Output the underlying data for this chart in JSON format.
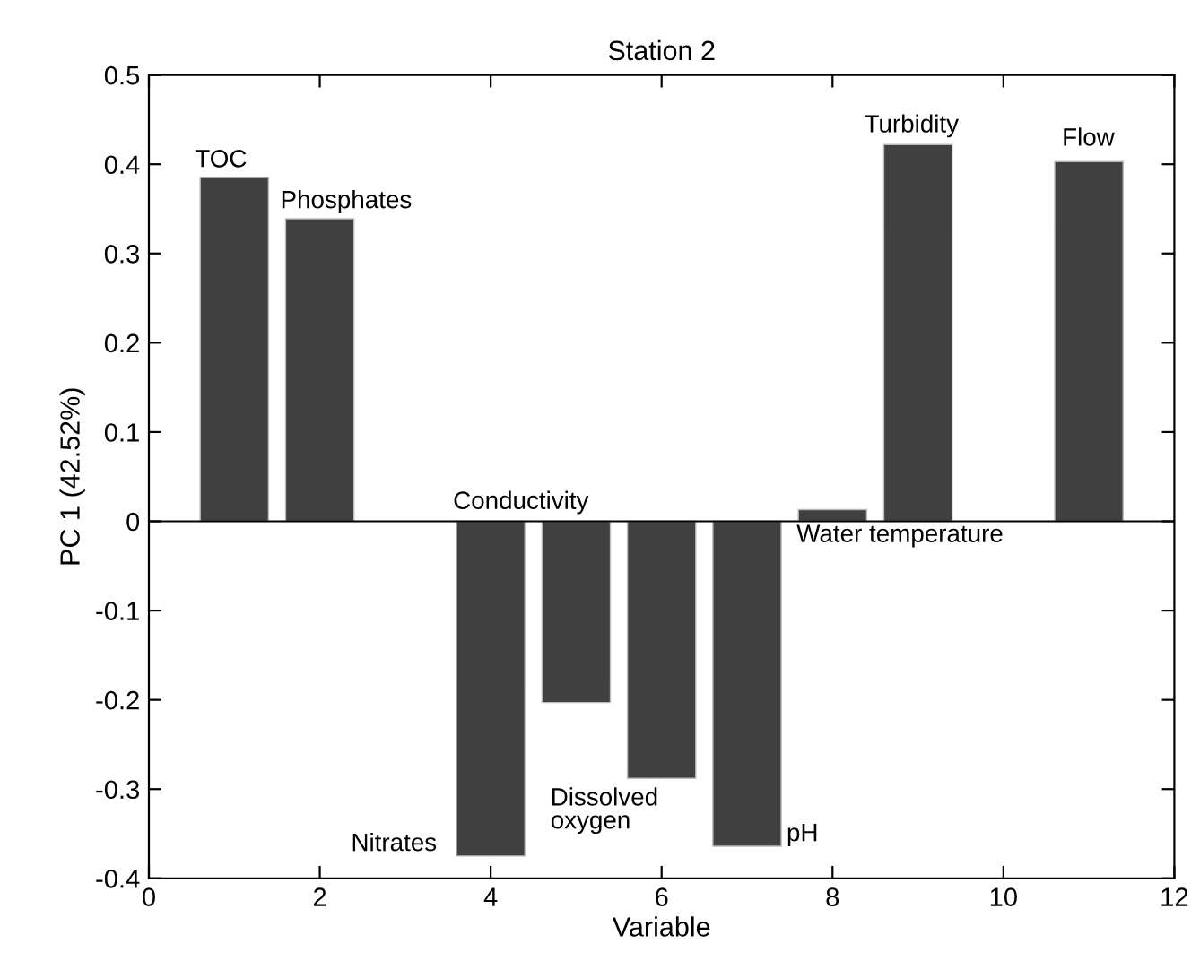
{
  "chart_data": {
    "type": "bar",
    "title": "Station 2",
    "xlabel": "Variable",
    "ylabel": "PC 1 (42.52%)",
    "x": [
      1,
      2,
      4,
      5,
      6,
      7,
      8,
      9,
      11
    ],
    "values": [
      0.385,
      0.339,
      -0.375,
      -0.203,
      -0.288,
      -0.364,
      0.013,
      0.422,
      0.403
    ],
    "color": "#404040",
    "xlim": [
      0,
      12
    ],
    "xticks": [
      0,
      2,
      4,
      6,
      8,
      10,
      12
    ],
    "ylim": [
      -0.4,
      0.5
    ],
    "yticks": [
      -0.4,
      -0.3,
      -0.2,
      -0.1,
      0,
      0.1,
      0.2,
      0.3,
      0.4,
      0.5
    ],
    "grid": false,
    "ref_lines": [
      {
        "axis": "y",
        "value": 0,
        "color": "#000000"
      }
    ],
    "annotations": [
      {
        "text": "TOC",
        "x": 1,
        "y": 0.385
      },
      {
        "text": "Phosphates",
        "x": 2,
        "y": 0.339
      },
      {
        "text": "Nitrates",
        "x": 4,
        "y": -0.375
      },
      {
        "text": "Conductivity",
        "x": 4,
        "y": 0
      },
      {
        "text": "Dissolved\noxygen",
        "x": 6,
        "y": -0.288
      },
      {
        "text": "pH",
        "x": 7,
        "y": -0.364
      },
      {
        "text": "Water temperature",
        "x": 8,
        "y": 0.013
      },
      {
        "text": "Turbidity",
        "x": 9,
        "y": 0.422
      },
      {
        "text": "Flow",
        "x": 11,
        "y": 0.403
      }
    ]
  }
}
